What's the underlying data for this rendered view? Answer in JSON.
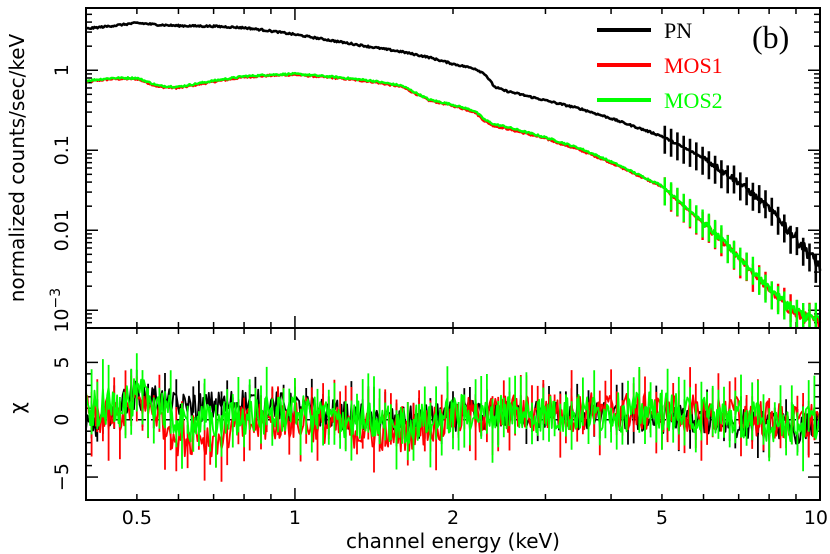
{
  "chart_data": [
    {
      "type": "line",
      "panel": "top",
      "panel_label": "(b)",
      "ylabel": "normalized counts/sec/keV",
      "yscale": "log",
      "xscale": "log",
      "xlim": [
        0.4,
        10
      ],
      "ylim": [
        0.0006,
        6
      ],
      "yticks": [
        {
          "value": 0.001,
          "base": "10",
          "exp": "−3"
        },
        {
          "value": 0.01,
          "label": "0.01"
        },
        {
          "value": 0.1,
          "label": "0.1"
        },
        {
          "value": 1,
          "label": "1"
        }
      ],
      "legend_position": "top-right",
      "series": [
        {
          "name": "PN",
          "color": "#000000",
          "x": [
            0.4,
            0.45,
            0.5,
            0.55,
            0.6,
            0.7,
            0.8,
            0.9,
            1.0,
            1.2,
            1.4,
            1.6,
            1.8,
            2.0,
            2.2,
            2.3,
            2.4,
            2.5,
            3.0,
            3.5,
            4.0,
            5.0,
            6.0,
            7.0,
            8.0,
            9.0,
            10.0
          ],
          "y": [
            3.3,
            3.6,
            3.9,
            3.7,
            3.6,
            3.55,
            3.4,
            3.1,
            2.8,
            2.3,
            1.95,
            1.7,
            1.45,
            1.2,
            1.05,
            0.9,
            0.62,
            0.56,
            0.42,
            0.33,
            0.25,
            0.15,
            0.08,
            0.04,
            0.019,
            0.008,
            0.0035
          ]
        },
        {
          "name": "MOS1",
          "color": "#ff0000",
          "x": [
            0.4,
            0.45,
            0.5,
            0.55,
            0.6,
            0.7,
            0.8,
            0.9,
            1.0,
            1.2,
            1.4,
            1.6,
            1.8,
            2.0,
            2.2,
            2.3,
            2.4,
            2.5,
            3.0,
            3.5,
            4.0,
            5.0,
            6.0,
            7.0,
            8.0,
            9.0,
            10.0
          ],
          "y": [
            0.72,
            0.78,
            0.78,
            0.62,
            0.6,
            0.72,
            0.82,
            0.86,
            0.88,
            0.8,
            0.72,
            0.62,
            0.42,
            0.36,
            0.3,
            0.23,
            0.2,
            0.19,
            0.14,
            0.1,
            0.07,
            0.035,
            0.012,
            0.0045,
            0.0018,
            0.0009,
            0.0007
          ]
        },
        {
          "name": "MOS2",
          "color": "#00ff00",
          "x": [
            0.4,
            0.45,
            0.5,
            0.55,
            0.6,
            0.7,
            0.8,
            0.9,
            1.0,
            1.2,
            1.4,
            1.6,
            1.8,
            2.0,
            2.2,
            2.3,
            2.4,
            2.5,
            3.0,
            3.5,
            4.0,
            5.0,
            6.0,
            7.0,
            8.0,
            9.0,
            10.0
          ],
          "y": [
            0.74,
            0.8,
            0.8,
            0.64,
            0.62,
            0.74,
            0.84,
            0.88,
            0.9,
            0.82,
            0.74,
            0.64,
            0.43,
            0.37,
            0.31,
            0.24,
            0.21,
            0.2,
            0.145,
            0.105,
            0.072,
            0.036,
            0.0125,
            0.0047,
            0.0019,
            0.00095,
            0.00075
          ]
        }
      ]
    },
    {
      "type": "line",
      "panel": "bottom",
      "ylabel": "χ",
      "xlabel": "channel energy (keV)",
      "xscale": "log",
      "xlim": [
        0.4,
        10
      ],
      "ylim": [
        -7,
        8
      ],
      "yticks": [
        {
          "value": -5,
          "label": "−5"
        },
        {
          "value": 0,
          "label": "0"
        },
        {
          "value": 5,
          "label": "5"
        }
      ],
      "xticks": [
        {
          "value": 0.5,
          "label": "0.5"
        },
        {
          "value": 1,
          "label": "1"
        },
        {
          "value": 2,
          "label": "2"
        },
        {
          "value": 5,
          "label": "5"
        },
        {
          "value": 10,
          "label": "10"
        }
      ],
      "reference_line": {
        "y": 0,
        "style": "dashed"
      },
      "series": [
        {
          "name": "PN",
          "color": "#000000",
          "x": [
            0.4,
            0.45,
            0.5,
            0.55,
            0.6,
            0.7,
            0.8,
            1.0,
            1.3,
            1.6,
            2.0,
            2.5,
            3.0,
            4.0,
            5.0,
            6.0,
            7.0,
            8.0,
            9.0,
            10.0
          ],
          "y": [
            -1.0,
            1.0,
            2.2,
            1.8,
            1.0,
            1.2,
            1.5,
            1.0,
            0.2,
            -0.2,
            0.3,
            0.5,
            0.4,
            0.2,
            0.1,
            0.0,
            -0.3,
            -0.6,
            -0.8,
            -0.6
          ]
        },
        {
          "name": "MOS1",
          "color": "#ff0000",
          "x": [
            0.4,
            0.45,
            0.5,
            0.55,
            0.6,
            0.7,
            0.8,
            1.0,
            1.3,
            1.6,
            2.0,
            2.5,
            3.0,
            4.0,
            5.0,
            6.0,
            7.0,
            8.0,
            9.0,
            10.0
          ],
          "y": [
            0.5,
            0.2,
            1.5,
            0.5,
            -1.5,
            -1.5,
            -0.5,
            0.0,
            -0.8,
            -1.2,
            0.2,
            0.5,
            0.6,
            0.8,
            0.6,
            0.4,
            0.5,
            0.0,
            -0.5,
            0.0
          ]
        },
        {
          "name": "MOS2",
          "color": "#00ff00",
          "x": [
            0.4,
            0.45,
            0.5,
            0.55,
            0.6,
            0.7,
            0.8,
            1.0,
            1.3,
            1.6,
            2.0,
            2.5,
            3.0,
            4.0,
            5.0,
            6.0,
            7.0,
            8.0,
            9.0,
            10.0
          ],
          "y": [
            0.8,
            1.2,
            2.0,
            1.5,
            -0.5,
            -0.2,
            0.3,
            0.5,
            0.0,
            -0.5,
            0.5,
            0.8,
            0.5,
            0.6,
            0.8,
            0.4,
            0.2,
            -0.2,
            -0.3,
            0.0
          ]
        }
      ]
    }
  ]
}
